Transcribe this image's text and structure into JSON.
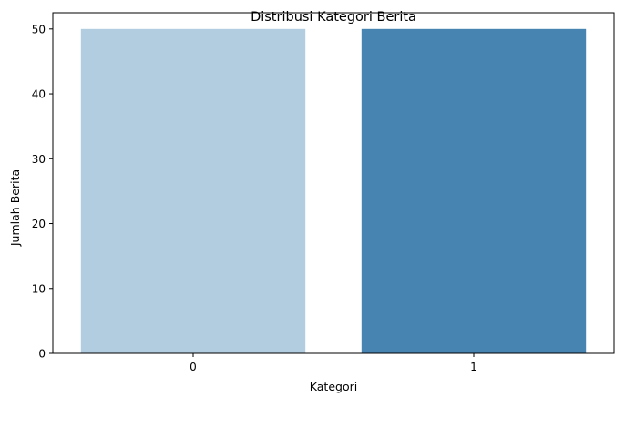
{
  "chart_data": {
    "type": "bar",
    "title": "Distribusi Kategori Berita",
    "xlabel": "Kategori",
    "ylabel": "Jumlah Berita",
    "categories": [
      "0",
      "1"
    ],
    "values": [
      50,
      50
    ],
    "colors": [
      "#b3cde0",
      "#4884b2"
    ],
    "ylim": [
      0,
      52.5
    ],
    "yticks": [
      0,
      10,
      20,
      30,
      40,
      50
    ],
    "grid": false,
    "legend": "none"
  }
}
